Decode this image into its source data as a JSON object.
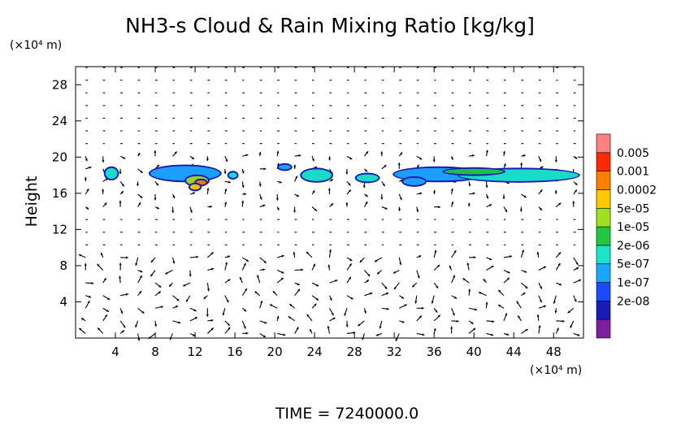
{
  "chart_data": {
    "type": "heatmap",
    "title": "NH3-s Cloud & Rain Mixing Ratio [kg/kg]",
    "y_unit": "(×10⁴ m)",
    "x_unit": "(×10⁴ m)",
    "ylabel": "Height",
    "xlabel": "",
    "footer": "TIME = 7240000.0",
    "xlim": [
      0,
      51
    ],
    "ylim": [
      0,
      30
    ],
    "x_ticks": [
      4,
      8,
      12,
      16,
      20,
      24,
      28,
      32,
      36,
      40,
      44,
      48
    ],
    "y_ticks": [
      4,
      8,
      12,
      16,
      20,
      24,
      28
    ],
    "colorbar": {
      "labels": [
        "0.005",
        "0.001",
        "0.0002",
        "5e-05",
        "1e-05",
        "2e-06",
        "5e-07",
        "1e-07",
        "2e-08"
      ],
      "colors": [
        "#7f1fa0",
        "#1a1ab4",
        "#1a4cff",
        "#1aa8ff",
        "#19e6c8",
        "#20c840",
        "#a0e01c",
        "#ffc800",
        "#ff8000",
        "#ff2a00",
        "#ff8080"
      ]
    },
    "cloud_patches": [
      {
        "x": 3.6,
        "y": 18.2,
        "w": 1.2,
        "h": 1.2,
        "level": 2
      },
      {
        "x": 11.0,
        "y": 18.2,
        "w": 7.0,
        "h": 1.6,
        "level": 1
      },
      {
        "x": 12.2,
        "y": 17.4,
        "w": 2.2,
        "h": 1.0,
        "level": 4
      },
      {
        "x": 12.6,
        "y": 17.2,
        "w": 1.0,
        "h": 0.5,
        "level": 6
      },
      {
        "x": 12.0,
        "y": 16.7,
        "w": 1.0,
        "h": 0.6,
        "level": 5
      },
      {
        "x": 15.8,
        "y": 18.0,
        "w": 0.8,
        "h": 0.6,
        "level": 2
      },
      {
        "x": 21.0,
        "y": 18.9,
        "w": 1.2,
        "h": 0.5,
        "level": 1
      },
      {
        "x": 24.2,
        "y": 18.0,
        "w": 3.0,
        "h": 1.3,
        "level": 2
      },
      {
        "x": 29.3,
        "y": 17.7,
        "w": 2.2,
        "h": 0.8,
        "level": 2
      },
      {
        "x": 36.5,
        "y": 18.1,
        "w": 9.0,
        "h": 1.4,
        "level": 1
      },
      {
        "x": 44.5,
        "y": 18.0,
        "w": 12.0,
        "h": 1.3,
        "level": 2
      },
      {
        "x": 34.0,
        "y": 17.3,
        "w": 2.2,
        "h": 0.8,
        "level": 1
      },
      {
        "x": 40.0,
        "y": 18.4,
        "w": 6.0,
        "h": 0.6,
        "level": 3
      }
    ]
  }
}
